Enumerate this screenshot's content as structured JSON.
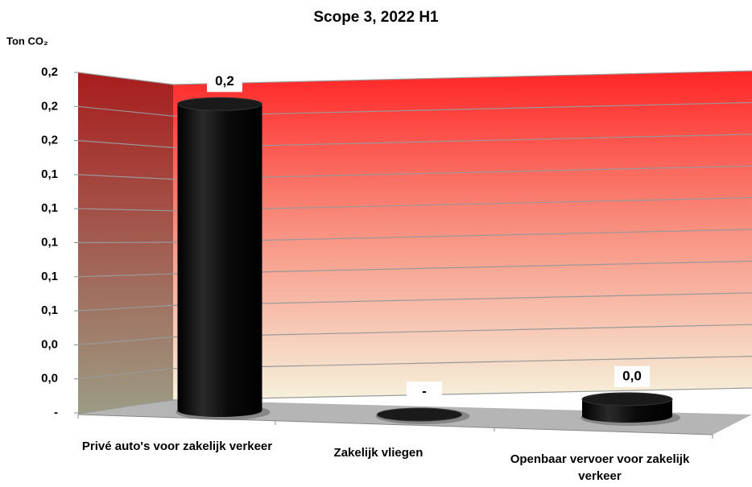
{
  "chart_data": {
    "type": "bar3d",
    "title": "Scope 3, 2022 H1",
    "y_axis_label": "Ton CO₂",
    "categories": [
      "Privé auto's voor zakelijk verkeer",
      "Zakelijk vliegen",
      "Openbaar vervoer voor zakelijk verkeer"
    ],
    "values": [
      0.18,
      0,
      0.01
    ],
    "value_labels": [
      "0,2",
      "-",
      "0,0"
    ],
    "color": "#111111",
    "ylim": [
      0,
      0.2
    ],
    "yticks": [
      {
        "value": 0,
        "label": "-"
      },
      {
        "value": 0.02,
        "label": "0,0"
      },
      {
        "value": 0.04,
        "label": "0,0"
      },
      {
        "value": 0.06,
        "label": "0,1"
      },
      {
        "value": 0.08,
        "label": "0,1"
      },
      {
        "value": 0.1,
        "label": "0,1"
      },
      {
        "value": 0.12,
        "label": "0,1"
      },
      {
        "value": 0.14,
        "label": "0,1"
      },
      {
        "value": 0.16,
        "label": "0,2"
      },
      {
        "value": 0.18,
        "label": "0,2"
      },
      {
        "value": 0.2,
        "label": "0,2"
      }
    ],
    "grid": true
  }
}
